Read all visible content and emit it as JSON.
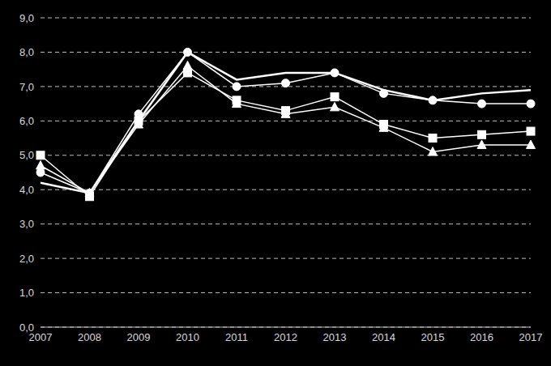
{
  "chart_data": {
    "type": "line",
    "categories": [
      "2007",
      "2008",
      "2009",
      "2010",
      "2011",
      "2012",
      "2013",
      "2014",
      "2015",
      "2016",
      "2017"
    ],
    "series": [
      {
        "color": "#ffffff",
        "marker": "none",
        "values": [
          4.2,
          3.9,
          6.0,
          8.0,
          7.2,
          7.4,
          7.4,
          6.9,
          6.6,
          6.8,
          6.9
        ]
      },
      {
        "color": "#ffffff",
        "marker": "circle",
        "values": [
          4.5,
          3.9,
          6.2,
          8.0,
          7.0,
          7.1,
          7.4,
          6.8,
          6.6,
          6.5,
          6.5
        ]
      },
      {
        "color": "#ffffff",
        "marker": "square",
        "values": [
          5.0,
          3.8,
          6.0,
          7.4,
          6.6,
          6.3,
          6.7,
          5.9,
          5.5,
          5.6,
          5.7
        ]
      },
      {
        "color": "#ffffff",
        "marker": "triangle",
        "values": [
          4.7,
          3.9,
          5.9,
          7.6,
          6.5,
          6.2,
          6.4,
          5.8,
          5.1,
          5.3,
          5.3
        ]
      }
    ],
    "ylim": [
      0,
      9
    ],
    "yticks": [
      {
        "value": 0,
        "label": "0,0"
      },
      {
        "value": 1,
        "label": "1,0"
      },
      {
        "value": 2,
        "label": "2,0"
      },
      {
        "value": 3,
        "label": "3,0"
      },
      {
        "value": 4,
        "label": "4,0"
      },
      {
        "value": 5,
        "label": "5,0"
      },
      {
        "value": 6,
        "label": "6,0"
      },
      {
        "value": 7,
        "label": "7,0"
      },
      {
        "value": 8,
        "label": "8,0"
      },
      {
        "value": 9,
        "label": "9,0"
      }
    ],
    "grid": true
  }
}
